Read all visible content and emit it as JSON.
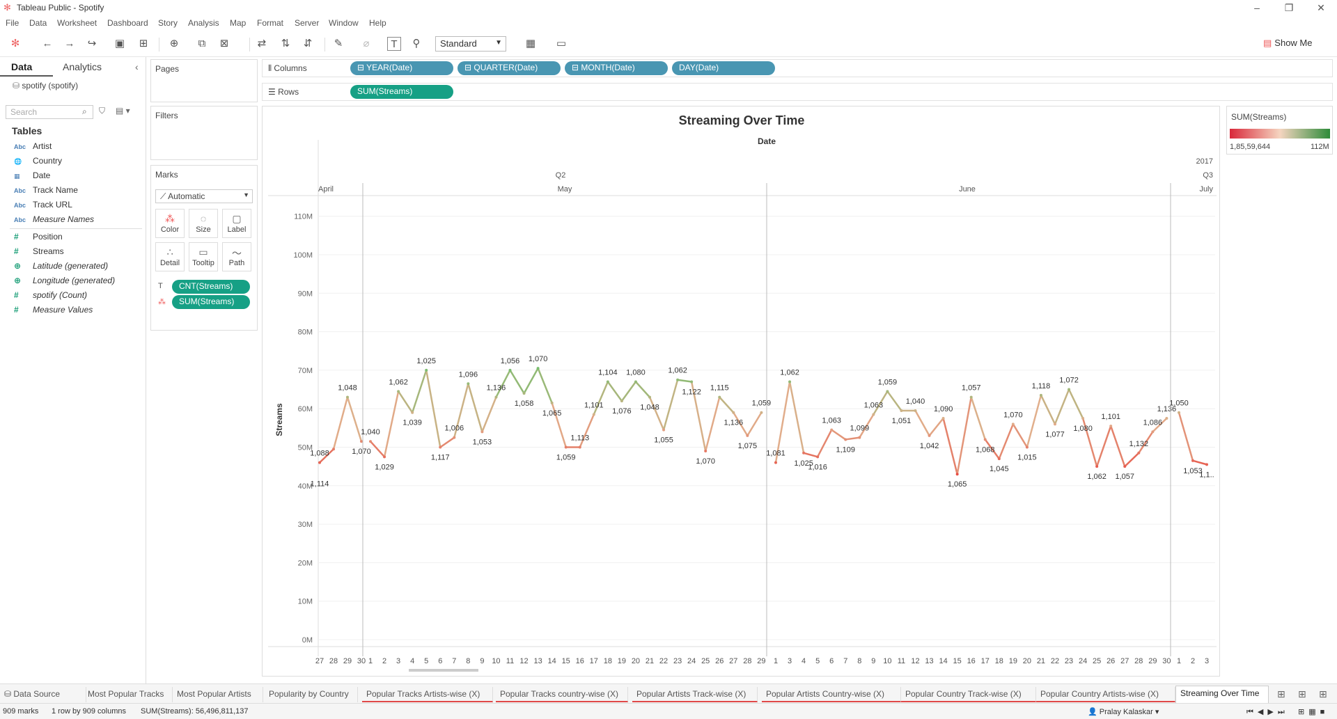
{
  "window": {
    "app_icon": "tableau-logo-icon",
    "title": "Tableau Public - Spotify"
  },
  "menu": [
    "File",
    "Data",
    "Worksheet",
    "Dashboard",
    "Story",
    "Analysis",
    "Map",
    "Format",
    "Server",
    "Window",
    "Help"
  ],
  "toolbar": {
    "fit": "Standard",
    "show_me": "Show Me"
  },
  "data_pane": {
    "tab_data": "Data",
    "tab_analytics": "Analytics",
    "datasource": "spotify (spotify)",
    "search_placeholder": "Search",
    "tables_heading": "Tables",
    "dimensions": [
      {
        "type": "Abc",
        "name": "Artist",
        "italic": false
      },
      {
        "type": "globe",
        "name": "Country",
        "italic": false
      },
      {
        "type": "date",
        "name": "Date",
        "italic": false
      },
      {
        "type": "Abc",
        "name": "Track Name",
        "italic": false
      },
      {
        "type": "Abc",
        "name": "Track URL",
        "italic": false
      },
      {
        "type": "Abc",
        "name": "Measure Names",
        "italic": true
      }
    ],
    "measures": [
      {
        "type": "#",
        "name": "Position",
        "italic": false
      },
      {
        "type": "#",
        "name": "Streams",
        "italic": false
      },
      {
        "type": "globe",
        "name": "Latitude (generated)",
        "italic": true
      },
      {
        "type": "globe",
        "name": "Longitude (generated)",
        "italic": true
      },
      {
        "type": "#",
        "name": "spotify (Count)",
        "italic": true
      },
      {
        "type": "#",
        "name": "Measure Values",
        "italic": true
      }
    ]
  },
  "cards": {
    "pages": "Pages",
    "filters": "Filters",
    "marks": "Marks",
    "mark_type": "Automatic",
    "mark_buttons": [
      "Color",
      "Size",
      "Label",
      "Detail",
      "Tooltip",
      "Path"
    ],
    "mark_pills": [
      "CNT(Streams)",
      "SUM(Streams)"
    ]
  },
  "shelves": {
    "columns_label": "Columns",
    "rows_label": "Rows",
    "columns": [
      "YEAR(Date)",
      "QUARTER(Date)",
      "MONTH(Date)",
      "DAY(Date)"
    ],
    "rows": [
      "SUM(Streams)"
    ]
  },
  "legend": {
    "title": "SUM(Streams)",
    "min": "1,85,59,644",
    "max": "112M",
    "color_low": "#d9283a",
    "color_mid": "#f5d5c0",
    "color_high": "#2e8b3a"
  },
  "chart_data": {
    "type": "line",
    "title": "Streaming Over Time",
    "header": "Date",
    "quarter_labels": [
      "Q2",
      "Q3"
    ],
    "year_label": "2017",
    "month_labels": [
      "April",
      "May",
      "June",
      "July"
    ],
    "ylabel": "Streams",
    "ylim": [
      0,
      115000000
    ],
    "yticks": [
      "0M",
      "10M",
      "20M",
      "30M",
      "40M",
      "50M",
      "60M",
      "70M",
      "80M",
      "90M",
      "100M",
      "110M"
    ],
    "series": [
      {
        "name": "April",
        "x": [
          "27",
          "28",
          "29",
          "30"
        ],
        "values": [
          46000000,
          49500000,
          63000000,
          51500000
        ],
        "labels": [
          "1,088\n1,114",
          "",
          "1,048",
          "1,070"
        ]
      },
      {
        "name": "May",
        "x": [
          "1",
          "2",
          "3",
          "4",
          "5",
          "6",
          "7",
          "8",
          "9",
          "10",
          "11",
          "12",
          "13",
          "14",
          "15",
          "16",
          "17",
          "18",
          "19",
          "20",
          "21",
          "22",
          "23",
          "24",
          "25",
          "26",
          "27",
          "28",
          "29"
        ],
        "values": [
          51500000,
          47500000,
          64500000,
          59000000,
          70000000,
          50000000,
          52500000,
          66500000,
          54000000,
          63000000,
          70000000,
          64000000,
          70500000,
          61500000,
          50000000,
          50000000,
          58500000,
          67000000,
          62000000,
          67000000,
          63000000,
          54500000,
          67500000,
          67000000,
          49000000,
          63000000,
          59000000,
          53000000,
          59000000
        ],
        "labels": [
          "1,040",
          "1,029",
          "1,062",
          "1,039",
          "1,025",
          "1,117",
          "1,006",
          "1,096",
          "1,053",
          "1,136",
          "1,056",
          "1,058",
          "1,070",
          "1,065",
          "1,059",
          "1,113",
          "1,101",
          "1,104",
          "1,076",
          "1,080",
          "1,048",
          "1,055",
          "1,062",
          "1,122",
          "1,070",
          "1,115",
          "1,136",
          "1,075",
          "1,059"
        ]
      },
      {
        "name": "June",
        "x": [
          "1",
          "3",
          "4",
          "5",
          "6",
          "7",
          "8",
          "9",
          "10",
          "11",
          "12",
          "13",
          "14",
          "15",
          "16",
          "17",
          "18",
          "19",
          "20",
          "21",
          "22",
          "23",
          "24",
          "25",
          "26",
          "27",
          "28",
          "29",
          "30"
        ],
        "values": [
          46000000,
          67000000,
          48500000,
          47500000,
          54500000,
          52000000,
          52500000,
          58500000,
          64500000,
          59500000,
          59500000,
          53000000,
          57500000,
          43000000,
          63000000,
          52000000,
          47000000,
          56000000,
          50000000,
          63500000,
          56000000,
          65000000,
          57500000,
          45000000,
          55500000,
          45000000,
          48500000,
          54000000,
          57500000
        ],
        "labels": [
          "1,081",
          "1,062",
          "1,025",
          "1,016",
          "1,063",
          "1,109",
          "1,099",
          "1,063",
          "1,059",
          "1,051",
          "1,040",
          "1,042",
          "1,090",
          "1,065",
          "1,057",
          "1,068",
          "1,045",
          "1,070",
          "1,015",
          "1,118",
          "1,077",
          "1,072",
          "1,080",
          "1,062",
          "1,101",
          "1,057",
          "1,132",
          "1,086",
          "1,136"
        ]
      },
      {
        "name": "July",
        "x": [
          "1",
          "2",
          "3"
        ],
        "values": [
          59000000,
          46500000,
          45500000
        ],
        "labels": [
          "1,050",
          "1,053",
          "1,1.."
        ]
      }
    ],
    "grid": true
  },
  "tabs": {
    "items": [
      {
        "label": "Data Source",
        "red": false,
        "active": false
      },
      {
        "label": "Most Popular Tracks",
        "red": false,
        "active": false
      },
      {
        "label": "Most Popular Artists",
        "red": false,
        "active": false
      },
      {
        "label": "Popularity by Country",
        "red": false,
        "active": false
      },
      {
        "label": "Popular Tracks Artists-wise (X)",
        "red": true,
        "active": false
      },
      {
        "label": "Popular Tracks country-wise (X)",
        "red": true,
        "active": false
      },
      {
        "label": "Popular Artists Track-wise (X)",
        "red": true,
        "active": false
      },
      {
        "label": "Popular Artists Country-wise (X)",
        "red": true,
        "active": false
      },
      {
        "label": "Popular Country Track-wise (X)",
        "red": true,
        "active": false
      },
      {
        "label": "Popular Country Artists-wise (X)",
        "red": true,
        "active": false
      },
      {
        "label": "Streaming Over Time",
        "red": false,
        "active": true
      }
    ]
  },
  "status": {
    "marks": "909 marks",
    "dims": "1 row by 909 columns",
    "sum": "SUM(Streams): 56,496,811,137",
    "user": "Pralay Kalaskar"
  }
}
